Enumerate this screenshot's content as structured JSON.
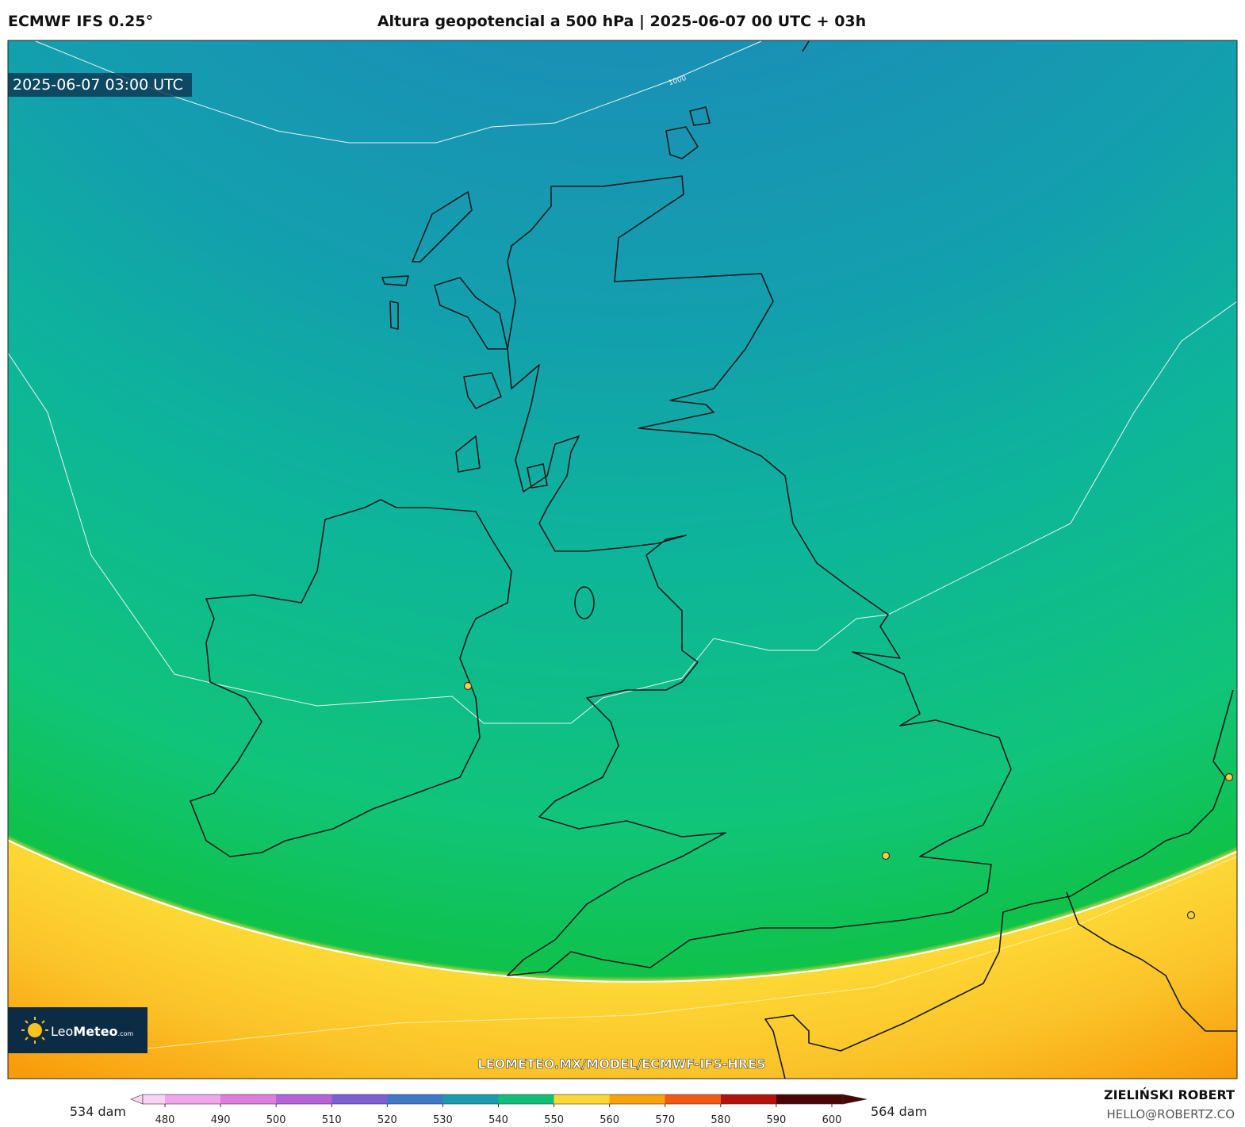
{
  "header": {
    "model": "ECMWF IFS 0.25°",
    "title": "Altura geopotencial a 500 hPa | 2025-06-07 00 UTC + 03h"
  },
  "map": {
    "valid_time": "2025-06-07 03:00 UTC",
    "contour_label": "1000",
    "url": "LEOMETEO.MX/MODEL/ECMWF-IFS-HRES",
    "logo": {
      "part1": "Leo",
      "part2": "Meteo",
      "suffix": ".com"
    }
  },
  "colorbar": {
    "min_label": "534 dam",
    "max_label": "564 dam",
    "lim": [
      476,
      602
    ],
    "ticks": [
      480,
      490,
      500,
      510,
      520,
      530,
      540,
      550,
      560,
      570,
      580,
      590,
      600
    ],
    "colors": [
      "#f9d3f3",
      "#f0a6ea",
      "#dd7ddf",
      "#b463d9",
      "#7d5fd3",
      "#3f78c8",
      "#1b9bae",
      "#10c07a",
      "#fdd835",
      "#f9a20a",
      "#f15a12",
      "#b3120c",
      "#4a0606"
    ]
  },
  "credit": {
    "name": "ZIELIŃSKI ROBERT",
    "email": "HELLO@ROBERTZ.CO"
  }
}
